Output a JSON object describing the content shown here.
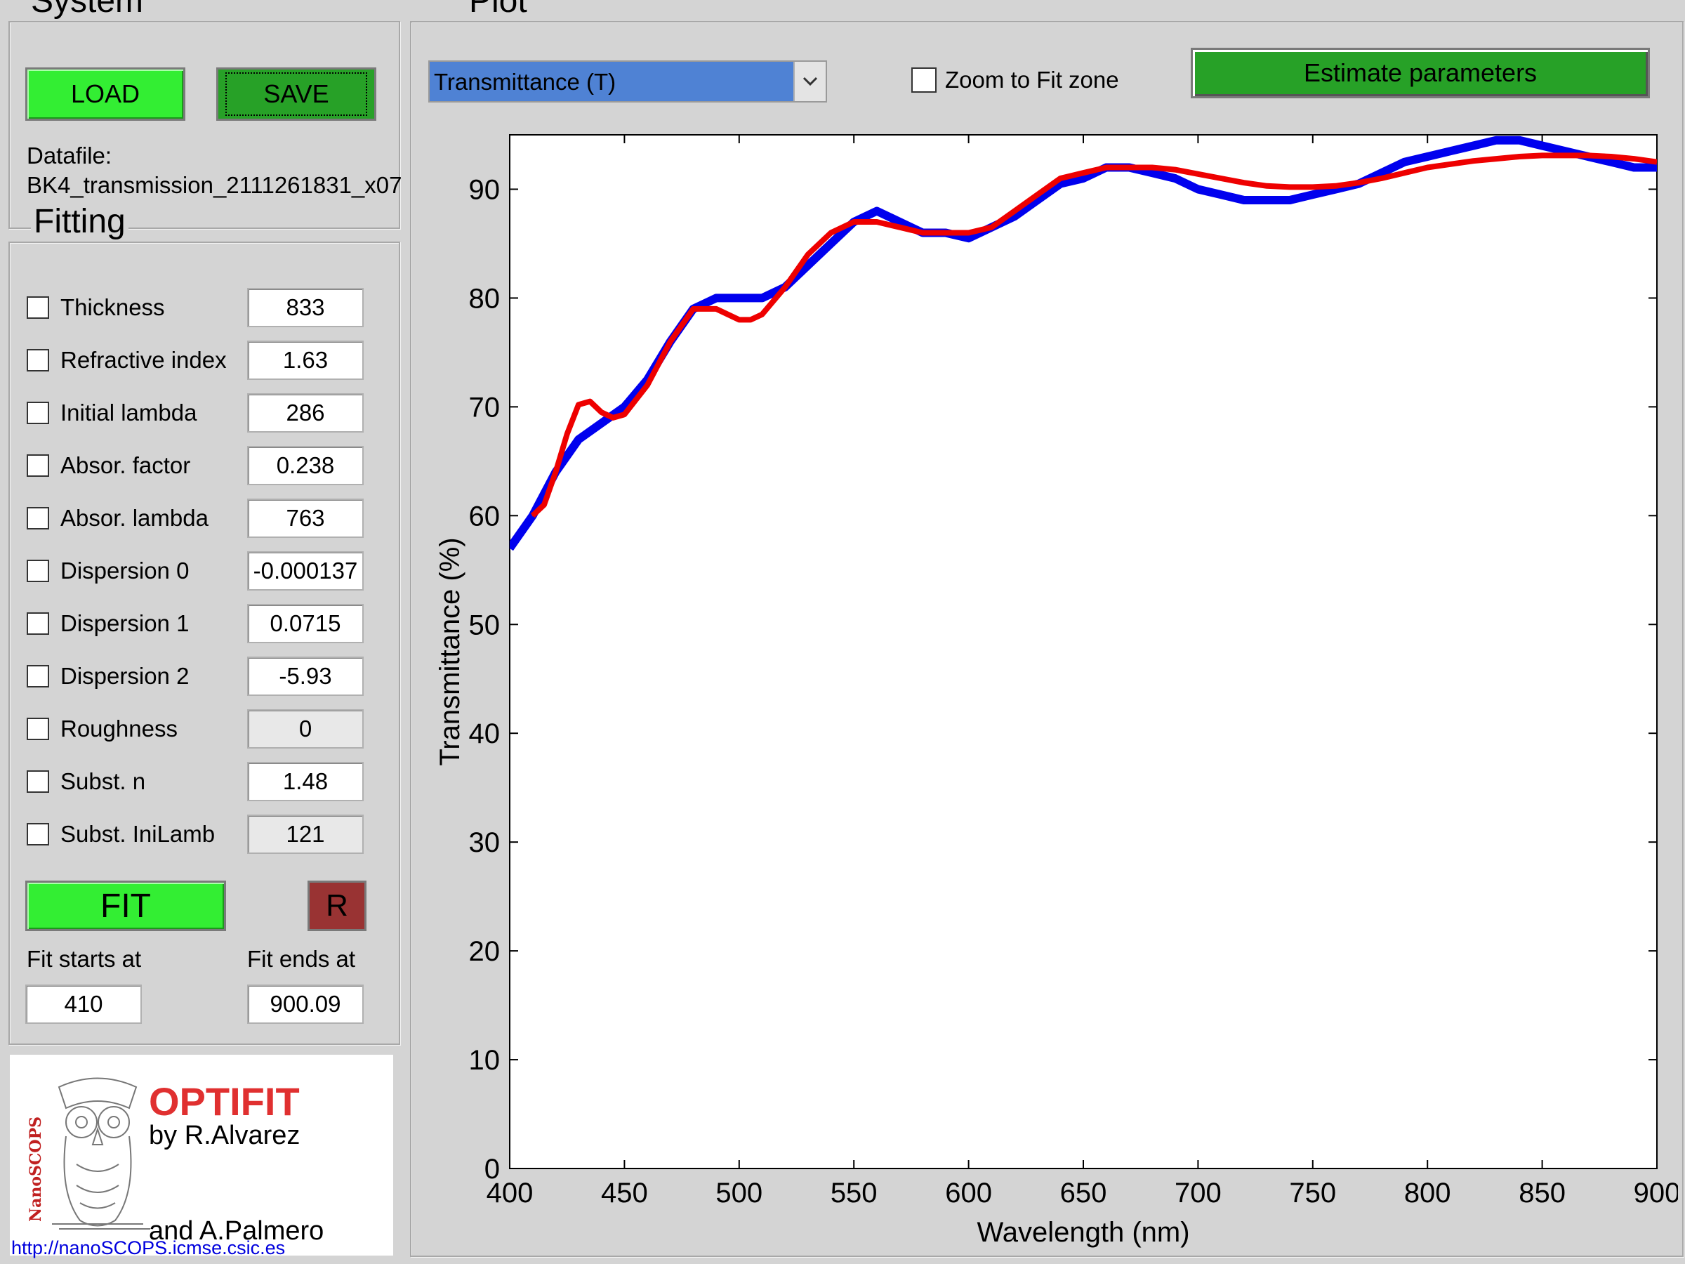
{
  "system": {
    "title": "System",
    "load_label": "LOAD",
    "save_label": "SAVE",
    "datafile_label": "Datafile:",
    "datafile_value": "BK4_transmission_2111261831_x07"
  },
  "fitting": {
    "title": "Fitting",
    "params": [
      {
        "label": "Thickness",
        "value": "833",
        "disabled": false
      },
      {
        "label": "Refractive index",
        "value": "1.63",
        "disabled": false
      },
      {
        "label": "Initial lambda",
        "value": "286",
        "disabled": false
      },
      {
        "label": "Absor. factor",
        "value": "0.238",
        "disabled": false
      },
      {
        "label": "Absor. lambda",
        "value": "763",
        "disabled": false
      },
      {
        "label": "Dispersion 0",
        "value": "-0.000137",
        "disabled": false
      },
      {
        "label": "Dispersion 1",
        "value": "0.0715",
        "disabled": false
      },
      {
        "label": "Dispersion 2",
        "value": "-5.93",
        "disabled": false
      },
      {
        "label": "Roughness",
        "value": "0",
        "disabled": true
      },
      {
        "label": "Subst. n",
        "value": "1.48",
        "disabled": false
      },
      {
        "label": "Subst. IniLamb",
        "value": "121",
        "disabled": true
      }
    ],
    "fit_label": "FIT",
    "reset_label": "R",
    "fit_start_label": "Fit starts at",
    "fit_start_value": "410",
    "fit_end_label": "Fit ends at",
    "fit_end_value": "900.09"
  },
  "logo": {
    "app_name": "OPTIFIT",
    "by_line": "by R.Alvarez",
    "and_line": "and A.Palmero",
    "vertical_text": "NanoSCOPS",
    "url": "http://nanoSCOPS.icmse.csic.es",
    "icon": "owl-sketch-icon"
  },
  "plot": {
    "title": "Plot",
    "dropdown_value": "Transmittance (T)",
    "zoom_label": "Zoom to Fit zone",
    "estimate_label": "Estimate parameters"
  },
  "colors": {
    "measured": "#0000ee",
    "fitted": "#ee0000",
    "accent_green": "#33ee33",
    "dark_green": "#27a127",
    "reset_red": "#993333",
    "dropdown_blue": "#4f82d4"
  },
  "chart_data": {
    "type": "line",
    "xlabel": "Wavelength (nm)",
    "ylabel": "Transmittance (%)",
    "xlim": [
      400,
      900
    ],
    "ylim": [
      0,
      95
    ],
    "xticks": [
      400,
      450,
      500,
      550,
      600,
      650,
      700,
      750,
      800,
      850,
      900
    ],
    "yticks": [
      0,
      10,
      20,
      30,
      40,
      50,
      60,
      70,
      80,
      90
    ],
    "grid": false,
    "series": [
      {
        "color": "#0000ee",
        "x": [
          400,
          410,
          420,
          430,
          440,
          450,
          460,
          470,
          480,
          490,
          500,
          510,
          520,
          530,
          540,
          550,
          560,
          570,
          580,
          590,
          600,
          610,
          620,
          630,
          640,
          650,
          660,
          670,
          680,
          690,
          700,
          710,
          720,
          730,
          740,
          750,
          760,
          770,
          780,
          790,
          800,
          810,
          820,
          830,
          840,
          850,
          860,
          870,
          880,
          890,
          900
        ],
        "y": [
          57,
          60,
          64,
          67,
          68.5,
          70,
          72.5,
          76,
          79,
          80,
          80,
          80,
          81,
          83,
          85,
          87,
          88,
          87,
          86,
          86,
          85.5,
          86.5,
          87.5,
          89,
          90.5,
          91,
          92,
          92,
          91.5,
          91,
          90,
          89.5,
          89,
          89,
          89,
          89.5,
          90,
          90.5,
          91.5,
          92.5,
          93,
          93.5,
          94,
          94.5,
          94.5,
          94,
          93.5,
          93,
          92.5,
          92,
          92
        ]
      },
      {
        "color": "#ee0000",
        "x": [
          410,
          415,
          420,
          425,
          430,
          435,
          440,
          445,
          450,
          460,
          470,
          480,
          490,
          500,
          505,
          510,
          520,
          530,
          540,
          550,
          560,
          570,
          580,
          590,
          600,
          610,
          620,
          630,
          640,
          650,
          660,
          670,
          680,
          690,
          700,
          710,
          720,
          730,
          740,
          750,
          760,
          770,
          780,
          790,
          800,
          810,
          820,
          830,
          840,
          850,
          860,
          870,
          880,
          890,
          900
        ],
        "y": [
          60,
          61,
          64,
          67.5,
          70.2,
          70.5,
          69.5,
          69,
          69.3,
          72,
          76,
          79,
          79,
          78,
          78,
          78.5,
          81,
          84,
          86,
          87,
          87,
          86.5,
          86,
          86,
          86,
          86.5,
          88,
          89.5,
          91,
          91.5,
          92,
          92,
          92,
          91.8,
          91.4,
          91,
          90.6,
          90.3,
          90.2,
          90.2,
          90.3,
          90.6,
          91,
          91.5,
          92,
          92.3,
          92.6,
          92.8,
          93,
          93.1,
          93.1,
          93.1,
          93,
          92.8,
          92.5
        ]
      }
    ]
  }
}
